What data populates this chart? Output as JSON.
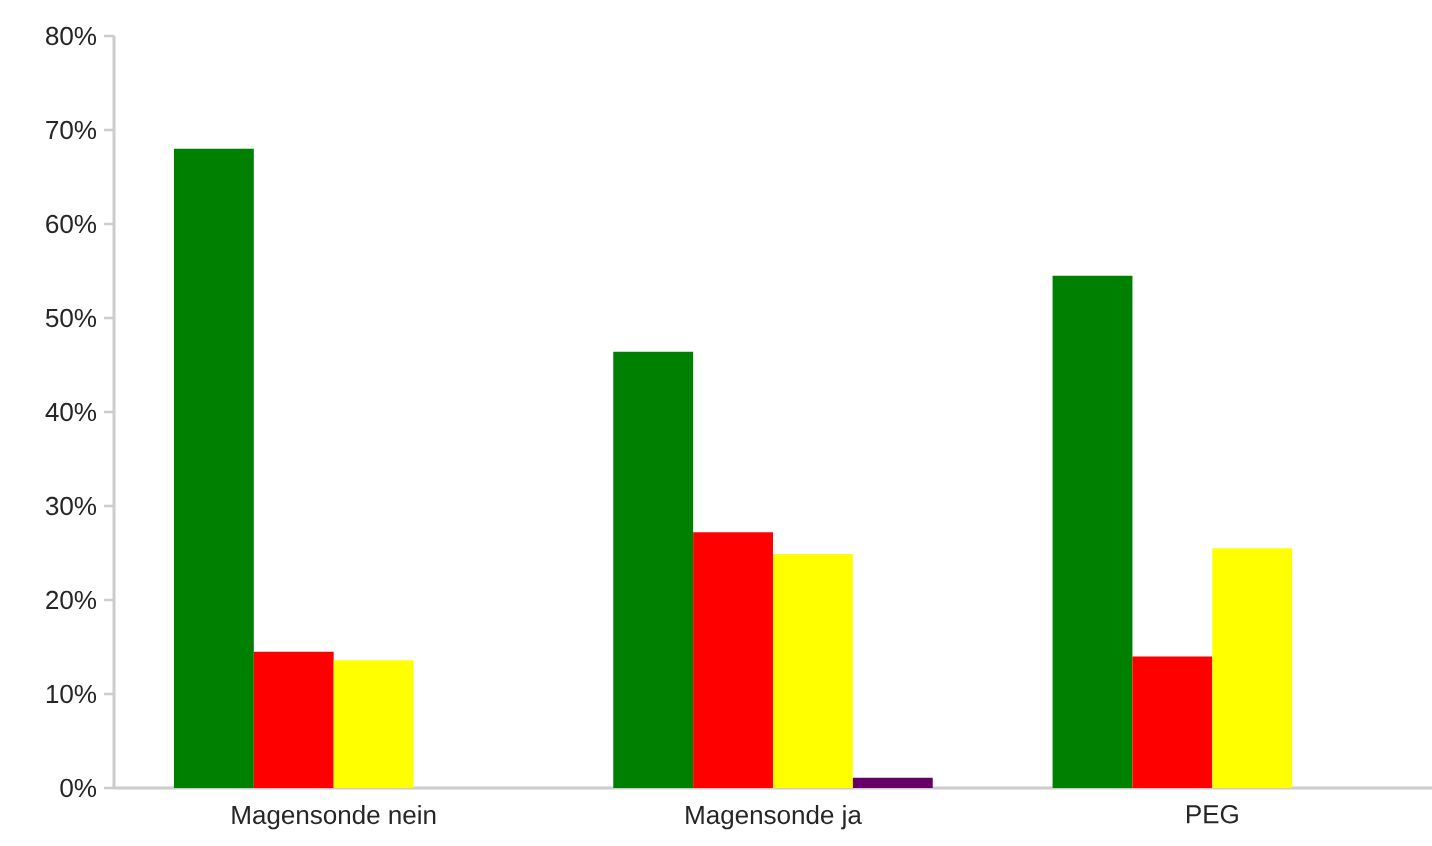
{
  "chart_data": {
    "type": "bar",
    "categories": [
      "Magensonde nein",
      "Magensonde ja",
      "PEG"
    ],
    "series": [
      {
        "color": "#008000",
        "values": [
          68,
          46.4,
          54.5
        ]
      },
      {
        "color": "#ff0000",
        "values": [
          14.5,
          27.2,
          14.0
        ]
      },
      {
        "color": "#ffff00",
        "values": [
          13.6,
          24.9,
          25.5
        ]
      },
      {
        "color": "#660066",
        "values": [
          null,
          1.1,
          null
        ]
      }
    ],
    "ylim": [
      0,
      80
    ],
    "yticks": [
      {
        "value": 0,
        "label": "0%"
      },
      {
        "value": 10,
        "label": "10%"
      },
      {
        "value": 20,
        "label": "20%"
      },
      {
        "value": 30,
        "label": "30%"
      },
      {
        "value": 40,
        "label": "40%"
      },
      {
        "value": 50,
        "label": "50%"
      },
      {
        "value": 60,
        "label": "60%"
      },
      {
        "value": 70,
        "label": "70%"
      },
      {
        "value": 80,
        "label": "80%"
      }
    ]
  }
}
